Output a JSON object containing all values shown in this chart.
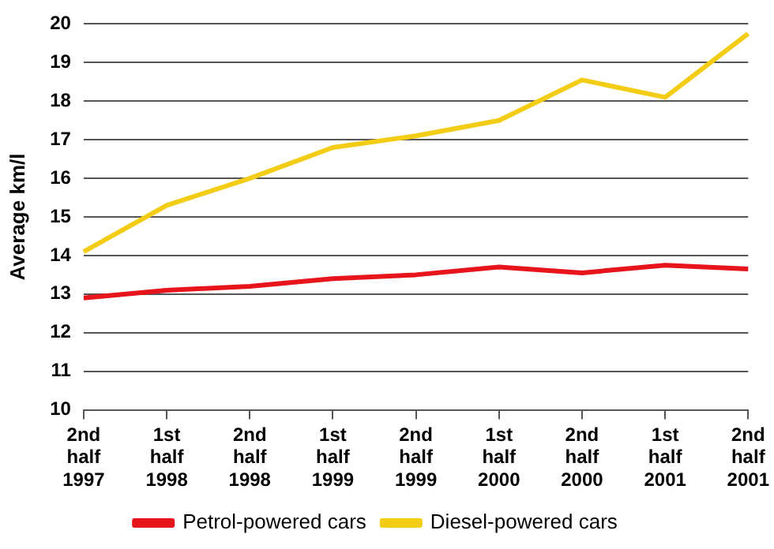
{
  "chart_data": {
    "type": "line",
    "ylabel": "Average km/l",
    "categories": [
      "2nd half 1997",
      "1st half 1998",
      "2nd half 1998",
      "1st half 1999",
      "2nd half 1999",
      "1st half 2000",
      "2nd half 2000",
      "1st half 2001",
      "2nd half 2001"
    ],
    "series": [
      {
        "name": "Petrol-powered cars",
        "color": "#e8141c",
        "values": [
          12.9,
          13.1,
          13.2,
          13.4,
          13.5,
          13.7,
          13.55,
          13.75,
          13.65
        ]
      },
      {
        "name": "Diesel-powered cars",
        "color": "#f2cc15",
        "values": [
          14.1,
          15.3,
          16.0,
          16.8,
          17.1,
          17.5,
          18.55,
          18.1,
          19.75
        ]
      }
    ],
    "ylim": [
      10,
      20
    ],
    "yticks": [
      10,
      11,
      12,
      13,
      14,
      15,
      16,
      17,
      18,
      19,
      20
    ],
    "grid": "y",
    "legend": "bottom",
    "marker": "none",
    "line_style": "solid"
  }
}
